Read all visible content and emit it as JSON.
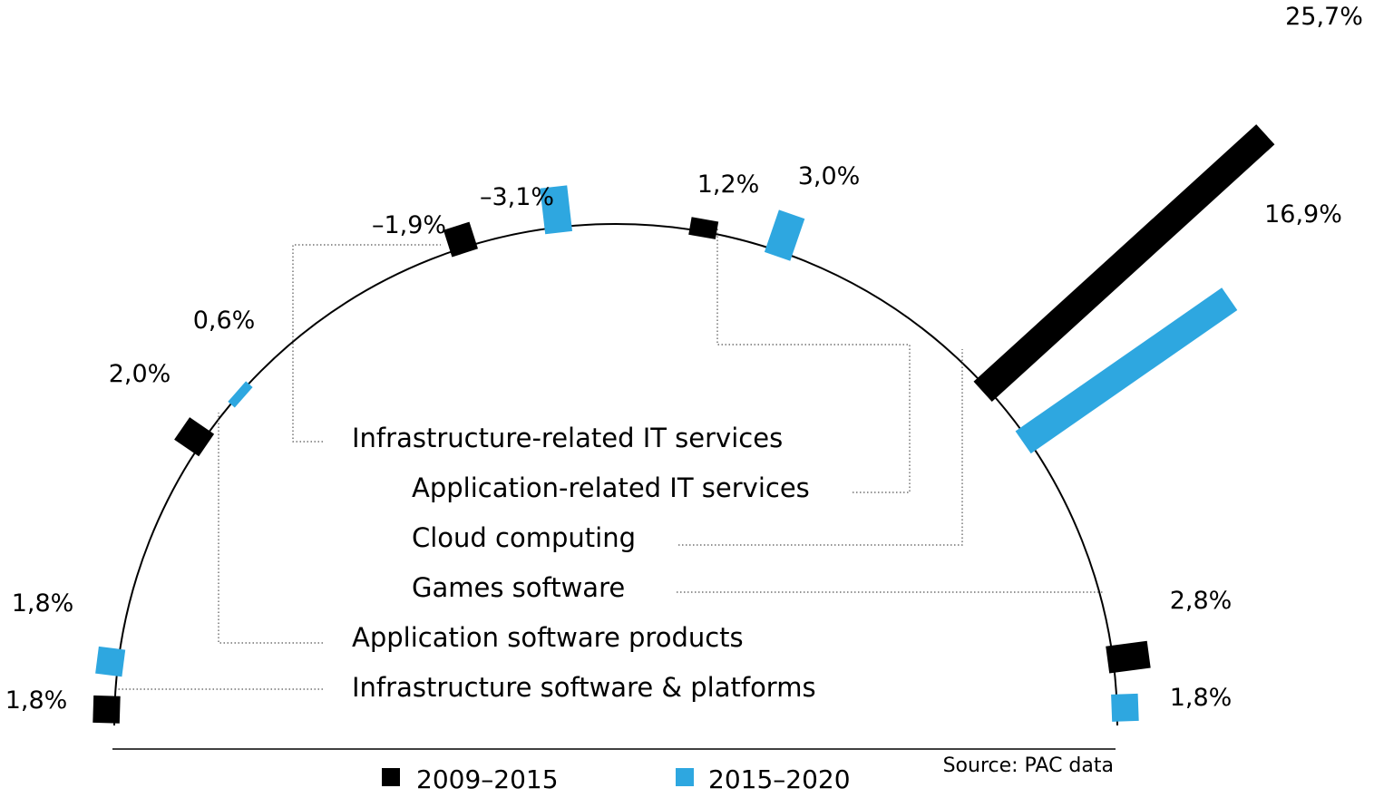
{
  "chart_data": {
    "type": "radial-bar",
    "source": "Source: PAC data",
    "legend": [
      {
        "name": "2009–2015",
        "color": "#000000"
      },
      {
        "name": "2015–2020",
        "color": "#2ea7e0"
      }
    ],
    "categories": [
      "Infrastructure software & platforms",
      "Application software products",
      "Infrastructure-related IT services",
      "Application-related IT services",
      "Cloud computing",
      "Games software"
    ],
    "series": [
      {
        "name": "2009–2015",
        "values": [
          1.8,
          2.0,
          -1.9,
          1.2,
          25.7,
          2.8
        ],
        "labels": [
          "1,8%",
          "2,0%",
          "–1,9%",
          "1,2%",
          "25,7%",
          "2,8%"
        ]
      },
      {
        "name": "2015–2020",
        "values": [
          1.8,
          0.6,
          -3.1,
          3.0,
          16.9,
          1.8
        ],
        "labels": [
          "1,8%",
          "0,6%",
          "–3,1%",
          "3,0%",
          "16,9%",
          "1,8%"
        ]
      }
    ]
  }
}
